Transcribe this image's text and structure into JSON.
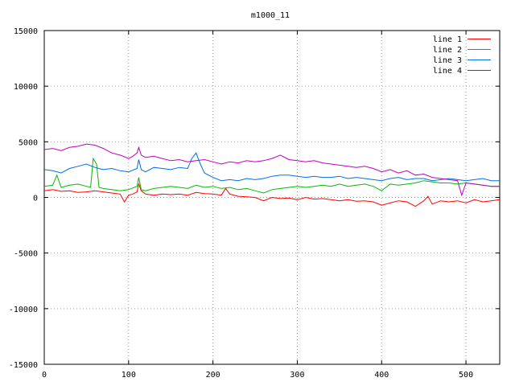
{
  "chart_data": {
    "type": "line",
    "title": "m1000_11",
    "xlabel": "",
    "ylabel": "",
    "xlim": [
      0,
      540
    ],
    "ylim": [
      -15000,
      15000
    ],
    "x_ticks": [
      0,
      100,
      200,
      300,
      400,
      500
    ],
    "y_ticks": [
      -15000,
      -10000,
      -5000,
      0,
      5000,
      10000,
      15000
    ],
    "grid": true,
    "legend_position": "top-right",
    "series": [
      {
        "name": "line 1",
        "color": "#ff0000",
        "x": [
          0,
          10,
          20,
          30,
          40,
          50,
          60,
          70,
          80,
          90,
          95,
          100,
          105,
          110,
          112,
          115,
          120,
          130,
          140,
          150,
          160,
          170,
          180,
          190,
          200,
          210,
          215,
          220,
          230,
          240,
          250,
          260,
          270,
          280,
          290,
          300,
          310,
          320,
          330,
          340,
          350,
          360,
          370,
          380,
          390,
          400,
          410,
          420,
          430,
          440,
          450,
          455,
          460,
          470,
          480,
          490,
          500,
          510,
          520,
          530,
          540
        ],
        "values": [
          600,
          700,
          550,
          600,
          450,
          500,
          600,
          500,
          400,
          300,
          -400,
          200,
          300,
          500,
          1200,
          600,
          300,
          200,
          300,
          250,
          300,
          200,
          450,
          350,
          300,
          200,
          800,
          300,
          100,
          50,
          0,
          -300,
          0,
          -100,
          -50,
          -200,
          0,
          -150,
          -100,
          -200,
          -300,
          -200,
          -350,
          -300,
          -400,
          -700,
          -500,
          -300,
          -400,
          -800,
          -300,
          100,
          -600,
          -300,
          -400,
          -300,
          -500,
          -200,
          -400,
          -300,
          -200
        ]
      },
      {
        "name": "line 2",
        "color": "#00bb00",
        "x": [
          0,
          10,
          15,
          20,
          30,
          40,
          50,
          55,
          58,
          62,
          65,
          70,
          80,
          90,
          100,
          110,
          112,
          115,
          120,
          130,
          140,
          150,
          160,
          170,
          180,
          190,
          200,
          210,
          220,
          230,
          240,
          250,
          260,
          270,
          280,
          290,
          300,
          310,
          320,
          330,
          340,
          350,
          360,
          370,
          380,
          390,
          400,
          410,
          420,
          430,
          440,
          450,
          460,
          470,
          480,
          490,
          500,
          510,
          520,
          530,
          540
        ],
        "values": [
          1000,
          1100,
          2000,
          900,
          1100,
          1200,
          1000,
          900,
          3500,
          3000,
          900,
          800,
          700,
          600,
          700,
          1000,
          1800,
          700,
          600,
          800,
          900,
          1000,
          900,
          800,
          1100,
          900,
          1000,
          800,
          900,
          700,
          800,
          600,
          400,
          700,
          800,
          900,
          1000,
          900,
          1000,
          1100,
          1000,
          1200,
          1000,
          1100,
          1200,
          1000,
          600,
          1200,
          1100,
          1200,
          1300,
          1500,
          1400,
          1300,
          1300,
          1200,
          1300,
          1200,
          1100,
          1000,
          1000
        ]
      },
      {
        "name": "line 3",
        "color": "#0070e0",
        "x": [
          0,
          10,
          20,
          30,
          40,
          50,
          60,
          70,
          80,
          90,
          100,
          110,
          112,
          115,
          120,
          130,
          140,
          150,
          160,
          170,
          175,
          180,
          185,
          190,
          200,
          210,
          220,
          230,
          240,
          250,
          260,
          270,
          280,
          290,
          300,
          310,
          320,
          330,
          340,
          350,
          360,
          370,
          380,
          390,
          400,
          410,
          420,
          430,
          440,
          450,
          460,
          470,
          480,
          490,
          500,
          510,
          520,
          530,
          540
        ],
        "values": [
          2500,
          2400,
          2200,
          2600,
          2800,
          3000,
          2700,
          2500,
          2600,
          2400,
          2300,
          2600,
          3400,
          2500,
          2300,
          2700,
          2600,
          2500,
          2700,
          2600,
          3500,
          4000,
          3000,
          2200,
          1800,
          1500,
          1600,
          1500,
          1700,
          1600,
          1700,
          1900,
          2000,
          2000,
          1900,
          1800,
          1900,
          1800,
          1800,
          1900,
          1700,
          1800,
          1700,
          1600,
          1500,
          1700,
          1800,
          1600,
          1700,
          1700,
          1500,
          1600,
          1700,
          1600,
          1500,
          1600,
          1700,
          1500,
          1500
        ]
      },
      {
        "name": "line 4",
        "color": "#c000c0",
        "x": [
          0,
          10,
          20,
          30,
          40,
          50,
          60,
          70,
          80,
          90,
          100,
          105,
          110,
          112,
          115,
          120,
          130,
          140,
          150,
          160,
          170,
          180,
          190,
          200,
          210,
          220,
          230,
          240,
          250,
          260,
          270,
          280,
          290,
          300,
          310,
          320,
          330,
          340,
          350,
          360,
          370,
          380,
          390,
          400,
          410,
          420,
          430,
          440,
          450,
          460,
          470,
          480,
          490,
          495,
          500,
          510,
          520,
          530,
          540
        ],
        "values": [
          4300,
          4400,
          4200,
          4500,
          4600,
          4800,
          4700,
          4400,
          4000,
          3800,
          3500,
          3700,
          4000,
          4500,
          3800,
          3600,
          3700,
          3500,
          3300,
          3400,
          3200,
          3300,
          3400,
          3200,
          3000,
          3200,
          3100,
          3300,
          3200,
          3300,
          3500,
          3800,
          3400,
          3300,
          3200,
          3300,
          3100,
          3000,
          2900,
          2800,
          2700,
          2800,
          2600,
          2300,
          2500,
          2200,
          2400,
          2000,
          2100,
          1800,
          1700,
          1600,
          1500,
          200,
          1300,
          1200,
          1100,
          1000,
          1000
        ]
      }
    ]
  }
}
